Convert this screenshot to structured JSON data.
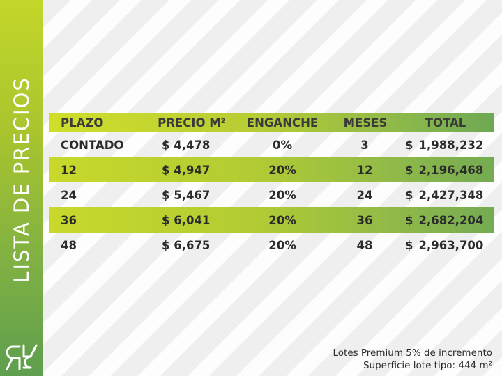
{
  "sidebar": {
    "title": "LISTA DE PRECIOS",
    "logo_text": "RR",
    "colors": {
      "top": "#c3d62a",
      "bottom": "#5e9e4e"
    }
  },
  "table": {
    "headers": {
      "plazo": "PLAZO",
      "precio": "PRECIO M²",
      "enganche": "ENGANCHE",
      "meses": "MESES",
      "total": "TOTAL"
    },
    "rows": [
      {
        "plazo": "CONTADO",
        "precio": "$ 4,478",
        "enganche": "0%",
        "meses": "3",
        "total_symbol": "$",
        "total": "1,988,232",
        "highlight": false
      },
      {
        "plazo": "12",
        "precio": "$ 4,947",
        "enganche": "20%",
        "meses": "12",
        "total_symbol": "$",
        "total": "2,196,468",
        "highlight": true
      },
      {
        "plazo": "24",
        "precio": "$ 5,467",
        "enganche": "20%",
        "meses": "24",
        "total_symbol": "$",
        "total": "2,427,348",
        "highlight": false
      },
      {
        "plazo": "36",
        "precio": "$ 6,041",
        "enganche": "20%",
        "meses": "36",
        "total_symbol": "$",
        "total": "2,682,204",
        "highlight": true
      },
      {
        "plazo": "48",
        "precio": "$ 6,675",
        "enganche": "20%",
        "meses": "48",
        "total_symbol": "$",
        "total": "2,963,700",
        "highlight": false
      }
    ]
  },
  "notes": {
    "line1": "Lotes Premium 5% de incremento",
    "line2": "Superficie lote tipo: 444 m²"
  }
}
